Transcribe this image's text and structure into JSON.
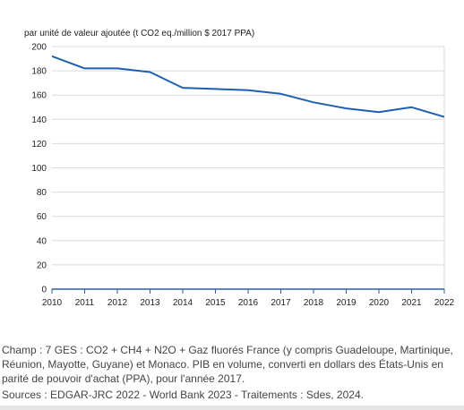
{
  "chart_data": {
    "type": "line",
    "unit_label": "par unité de valeur ajoutée (t CO2 eq./million $ 2017 PPA)",
    "x": [
      "2010",
      "2011",
      "2012",
      "2013",
      "2014",
      "2015",
      "2016",
      "2017",
      "2018",
      "2019",
      "2020",
      "2021",
      "2022"
    ],
    "series": [
      {
        "values": [
          192,
          182,
          182,
          179,
          166,
          165,
          164,
          161,
          154,
          149,
          146,
          150,
          142
        ],
        "color": "#1f5fb0"
      }
    ],
    "yticks": [
      "0",
      "20",
      "40",
      "60",
      "80",
      "100",
      "120",
      "140",
      "160",
      "180",
      "200"
    ],
    "ylim": [
      0,
      200
    ],
    "grid": true,
    "legend": "none"
  },
  "notes": {
    "champ": "Champ : 7 GES : CO2 + CH4 + N2O + Gaz fluorés France (y compris Guadeloupe, Martinique, Réunion, Mayotte, Guyane) et Monaco. PIB en volume, converti en dollars des États-Unis en parité de pouvoir d'achat (PPA), pour l'année 2017.",
    "sources": "Sources : EDGAR-JRC 2022 - World Bank 2023 - Traitements : Sdes, 2024."
  }
}
